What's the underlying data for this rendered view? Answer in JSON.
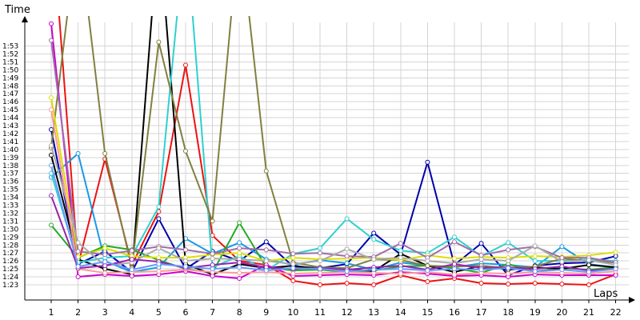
{
  "chart_data": {
    "type": "line",
    "xlabel": "Laps",
    "ylabel": "Time",
    "x": [
      1,
      2,
      3,
      4,
      5,
      6,
      7,
      8,
      9,
      10,
      11,
      12,
      13,
      14,
      15,
      16,
      17,
      18,
      19,
      20,
      21,
      22
    ],
    "x_range": [
      1,
      22
    ],
    "y_range_seconds": [
      82,
      116
    ],
    "y_ticks": [
      "1:23",
      "1:24",
      "1:25",
      "1:26",
      "1:27",
      "1:28",
      "1:29",
      "1:30",
      "1:31",
      "1:32",
      "1:33",
      "1:34",
      "1:35",
      "1:36",
      "1:37",
      "1:38",
      "1:39",
      "1:40",
      "1:41",
      "1:42",
      "1:43",
      "1:44",
      "1:45",
      "1:46",
      "1:47",
      "1:48",
      "1:49",
      "1:50",
      "1:51",
      "1:52",
      "1:53"
    ],
    "grid": true,
    "legend": "none",
    "series": [
      {
        "color": "#ee1111",
        "values": [
          130,
          85.5,
          98.8,
          85.5,
          92.2,
          110.6,
          89.2,
          86.0,
          85.5,
          83.5,
          83.0,
          83.2,
          83.0,
          84.2,
          83.4,
          83.8,
          83.2,
          83.1,
          83.2,
          83.1,
          83.0,
          84.3
        ]
      },
      {
        "color": "#0000aa",
        "values": [
          102.5,
          85.6,
          87.2,
          84.6,
          91.3,
          85.0,
          87.2,
          86.0,
          88.4,
          85.3,
          85.1,
          85.6,
          89.5,
          86.8,
          98.4,
          85.5,
          88.2,
          84.2,
          85.4,
          85.7,
          85.8,
          86.6
        ]
      },
      {
        "color": "#1a9ae6",
        "values": [
          96.5,
          99.5,
          86.0,
          84.6,
          85.2,
          88.8,
          86.9,
          88.3,
          86.2,
          85.5,
          86.1,
          85.7,
          84.9,
          85.8,
          85.4,
          85.2,
          85.7,
          85.5,
          85.2,
          87.8,
          85.6,
          85.2
        ]
      },
      {
        "color": "#22aa22",
        "values": [
          90.5,
          86.4,
          87.9,
          87.4,
          86.1,
          85.0,
          84.5,
          90.8,
          85.2,
          84.8,
          84.9,
          84.6,
          84.8,
          85.3,
          85.4,
          85.1,
          84.5,
          85.6,
          84.7,
          85.1,
          84.9,
          85.2
        ]
      },
      {
        "color": "#000000",
        "values": [
          99.3,
          86.2,
          85.0,
          84.3,
          128,
          85.6,
          84.3,
          85.6,
          85.1,
          85.4,
          85.0,
          85.0,
          84.7,
          86.9,
          85.4,
          84.6,
          85.4,
          84.9,
          85.2,
          85.0,
          85.5,
          85.2
        ]
      },
      {
        "color": "#30d0d0",
        "values": [
          97.0,
          85.8,
          86.4,
          86.6,
          92.8,
          128,
          85.2,
          86.6,
          84.8,
          86.9,
          87.6,
          91.3,
          88.7,
          87.3,
          87.0,
          89.0,
          86.6,
          88.3,
          86.0,
          86.0,
          86.2,
          86.0
        ]
      },
      {
        "color": "#808040",
        "values": [
          100.2,
          128,
          99.5,
          85.1,
          113.5,
          99.8,
          91.0,
          128,
          97.3,
          85.8,
          85.2,
          85.1,
          86.2,
          86.1,
          85.4,
          85.3,
          85.4,
          85.1,
          85.3,
          86.3,
          86.0,
          85.8
        ]
      },
      {
        "color": "#cc00cc",
        "values": [
          115.8,
          84.0,
          84.3,
          84.1,
          84.3,
          84.7,
          84.1,
          83.8,
          85.5,
          84.1,
          84.2,
          84.3,
          84.2,
          84.6,
          84.4,
          84.1,
          84.2,
          84.0,
          84.3,
          84.2,
          84.2,
          84.2
        ]
      },
      {
        "color": "#dddd00",
        "values": [
          106.5,
          86.5,
          87.6,
          86.6,
          86.4,
          86.4,
          86.8,
          87.0,
          86.0,
          86.4,
          86.2,
          86.3,
          86.4,
          86.1,
          86.7,
          86.3,
          86.5,
          86.4,
          86.6,
          86.5,
          86.7,
          87.1
        ]
      },
      {
        "color": "#a06ea8",
        "values": [
          113.7,
          87.2,
          86.8,
          87.3,
          87.8,
          87.4,
          86.9,
          87.6,
          87.4,
          86.9,
          87.0,
          86.6,
          86.5,
          88.2,
          86.4,
          88.4,
          86.7,
          87.4,
          87.8,
          86.4,
          86.4,
          85.8
        ]
      },
      {
        "color": "#aaaaaa",
        "values": [
          100.5,
          88.3,
          85.4,
          85.8,
          87.6,
          86.0,
          86.3,
          86.2,
          86.0,
          85.6,
          86.0,
          87.5,
          86.2,
          86.4,
          86.0,
          85.7,
          86.2,
          86.0,
          87.9,
          85.9,
          86.1,
          85.5
        ]
      },
      {
        "color": "#ff9999",
        "values": [
          105.0,
          85.0,
          84.5,
          84.6,
          84.7,
          84.9,
          84.6,
          84.5,
          84.6,
          84.4,
          84.5,
          84.6,
          84.5,
          84.4,
          84.6,
          84.3,
          84.5,
          84.4,
          84.6,
          84.5,
          84.4,
          84.7
        ]
      },
      {
        "color": "#9922aa",
        "values": [
          94.2,
          85.1,
          85.4,
          86.2,
          85.9,
          85.1,
          85.5,
          85.8,
          85.2,
          85.0,
          85.1,
          84.9,
          85.2,
          85.4,
          84.9,
          85.6,
          85.1,
          85.2,
          85.0,
          85.3,
          84.8,
          85.0
        ]
      },
      {
        "color": "#6699ff",
        "values": [
          98.0,
          85.3,
          85.9,
          84.9,
          85.6,
          85.3,
          85.0,
          85.2,
          84.8,
          85.1,
          85.0,
          84.7,
          84.9,
          85.0,
          84.8,
          85.0,
          84.9,
          85.1,
          84.7,
          84.9,
          84.6,
          85.0
        ]
      }
    ]
  }
}
